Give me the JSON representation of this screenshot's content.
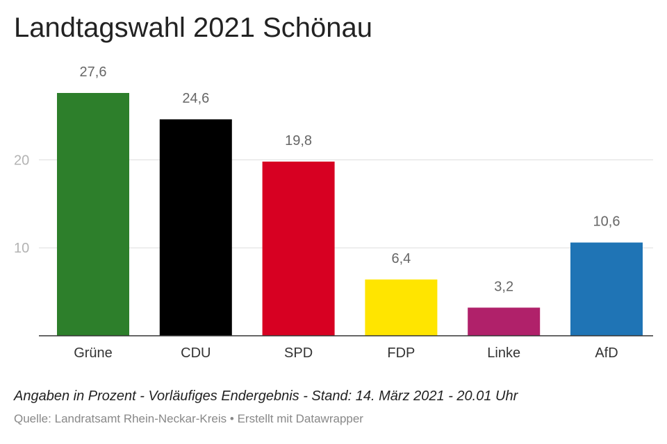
{
  "header": {
    "title": "Landtagswahl 2021 Schönau"
  },
  "footer": {
    "note": "Angaben in Prozent - Vorläufiges Endergebnis - Stand: 14. März 2021 - 20.01 Uhr",
    "source_label": "Quelle:",
    "source": "Landratsamt Rhein-Neckar-Kreis",
    "separator": "•",
    "credit": "Erstellt mit Datawrapper"
  },
  "chart_data": {
    "type": "bar",
    "title": "Landtagswahl 2021 Schönau",
    "categories": [
      "Grüne",
      "CDU",
      "SPD",
      "FDP",
      "Linke",
      "AfD"
    ],
    "values": [
      27.6,
      24.6,
      19.8,
      6.4,
      3.2,
      10.6
    ],
    "value_labels": [
      "27,6",
      "24,6",
      "19,8",
      "6,4",
      "3,2",
      "10,6"
    ],
    "colors": [
      "#2d7f2b",
      "#000000",
      "#d70022",
      "#ffe500",
      "#b0216a",
      "#1f74b5"
    ],
    "yticks": [
      10,
      20
    ],
    "ytick_labels": [
      "10",
      "20"
    ],
    "ylim": [
      0,
      27.6
    ],
    "grid": true,
    "xlabel": "",
    "ylabel": ""
  }
}
